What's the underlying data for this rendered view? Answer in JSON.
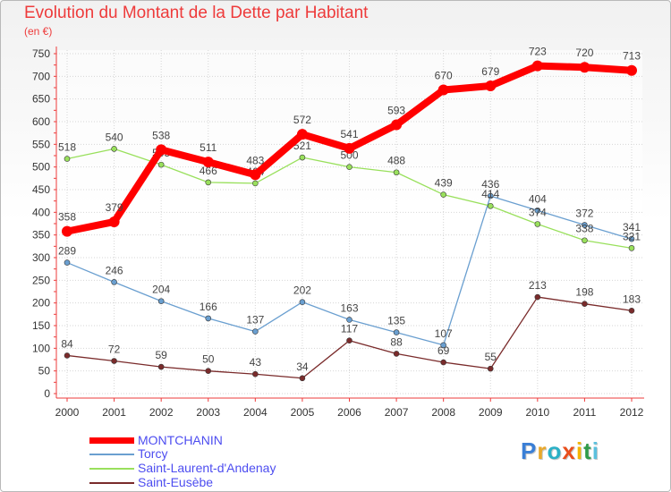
{
  "title": "Evolution du Montant de la Dette par Habitant",
  "unit": "(en €)",
  "brand": {
    "letters": [
      "P",
      "r",
      "o",
      "x",
      "i",
      "t",
      "i"
    ],
    "colors": [
      "#3a7fd6",
      "#e9a82a",
      "#2bb0c6",
      "#e94e1b",
      "#f4b400",
      "#2f9b4a",
      "#5bc0de"
    ]
  },
  "chart_data": {
    "type": "line",
    "title": "Evolution du Montant de la Dette par Habitant",
    "ylabel": "(en €)",
    "x": [
      "2000",
      "2001",
      "2002",
      "2003",
      "2004",
      "2005",
      "2006",
      "2007",
      "2008",
      "2009",
      "2010",
      "2011",
      "2012"
    ],
    "ylim": [
      0,
      750
    ],
    "yticks": [
      0,
      50,
      100,
      150,
      200,
      250,
      300,
      350,
      400,
      450,
      500,
      550,
      600,
      650,
      700,
      750
    ],
    "grid": true,
    "legend": "bottom-left",
    "series": [
      {
        "name": "MONTCHANIN",
        "color": "#ff0000",
        "values": [
          358,
          379,
          538,
          511,
          483,
          572,
          541,
          593,
          670,
          679,
          723,
          720,
          713
        ]
      },
      {
        "name": "Torcy",
        "color": "#6a9fd0",
        "values": [
          289,
          246,
          204,
          166,
          137,
          202,
          163,
          135,
          107,
          436,
          404,
          372,
          341
        ]
      },
      {
        "name": "Saint-Laurent-d'Andenay",
        "color": "#99e05c",
        "values": [
          518,
          540,
          505,
          466,
          464,
          521,
          500,
          488,
          439,
          414,
          374,
          338,
          321
        ]
      },
      {
        "name": "Saint-Eusèbe",
        "color": "#7a2b2b",
        "values": [
          84,
          72,
          59,
          50,
          43,
          34,
          117,
          88,
          69,
          55,
          213,
          198,
          183
        ]
      }
    ]
  }
}
